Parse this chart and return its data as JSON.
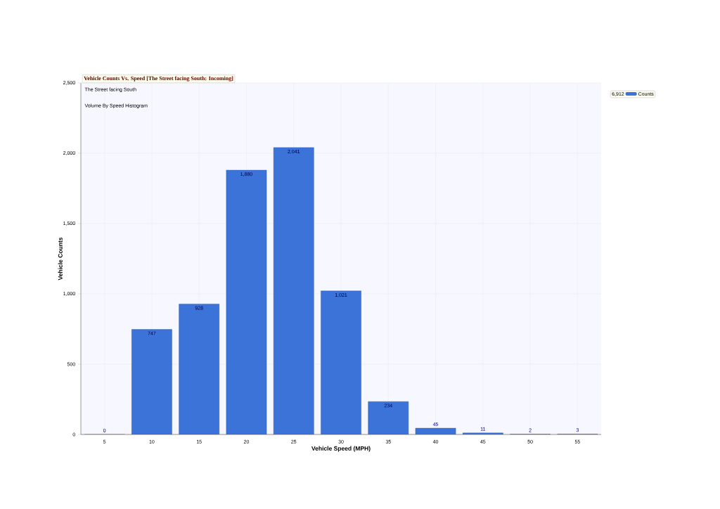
{
  "chart_data": {
    "type": "bar",
    "title": "Vehicle Counts Vs. Speed [The Street facing South: Incoming]",
    "subtitle": "The Street facing South",
    "annotations": [
      "Volume By Speed Histogram",
      "6,912"
    ],
    "xlabel": "Vehicle Speed (MPH)",
    "ylabel": "Vehicle Counts",
    "categories": [
      "5",
      "10",
      "15",
      "20",
      "25",
      "30",
      "35",
      "40",
      "45",
      "50",
      "55"
    ],
    "series": [
      {
        "name": "Counts",
        "color": "#3b73d9",
        "values": [
          0,
          747,
          928,
          1880,
          2041,
          1021,
          234,
          45,
          11,
          2,
          3
        ],
        "value_labels": [
          "0",
          "747",
          "928",
          "1,880",
          "2,041",
          "1,021",
          "234",
          "45",
          "11",
          "2",
          "3"
        ]
      }
    ],
    "ylim": [
      0,
      2500
    ],
    "yticks": [
      0,
      500,
      {
        "value": 1000,
        "label": "1,000"
      },
      {
        "value": 1500,
        "label": "1,500"
      },
      {
        "value": 2000,
        "label": "2,000"
      },
      {
        "value": 2500,
        "label": "2,500"
      }
    ],
    "grid": true,
    "legend": "top right"
  }
}
